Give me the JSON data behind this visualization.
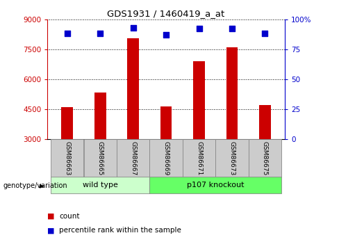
{
  "title": "GDS1931 / 1460419_a_at",
  "samples": [
    "GSM86663",
    "GSM86665",
    "GSM86667",
    "GSM86669",
    "GSM86671",
    "GSM86673",
    "GSM86675"
  ],
  "counts": [
    4600,
    5350,
    8050,
    4650,
    6900,
    7600,
    4700
  ],
  "percentile_ranks": [
    88,
    88,
    93,
    87,
    92,
    92,
    88
  ],
  "ymin": 3000,
  "ymax": 9000,
  "yticks": [
    3000,
    4500,
    6000,
    7500,
    9000
  ],
  "ytick_labels_left": [
    "3000",
    "4500",
    "6000",
    "7500",
    "9000"
  ],
  "right_yticks": [
    0,
    25,
    50,
    75,
    100
  ],
  "right_ytick_labels": [
    "0",
    "25",
    "50",
    "75",
    "100%"
  ],
  "bar_color": "#cc0000",
  "dot_color": "#0000cc",
  "group1_label": "wild type",
  "group2_label": "p107 knockout",
  "group1_color": "#ccffcc",
  "group2_color": "#66ff66",
  "legend_count_color": "#cc0000",
  "legend_pct_color": "#0000cc",
  "genotype_label": "genotype/variation",
  "legend_count_label": "count",
  "legend_pct_label": "percentile rank within the sample",
  "bar_width": 0.35,
  "dot_size": 40,
  "label_bg_color": "#cccccc"
}
